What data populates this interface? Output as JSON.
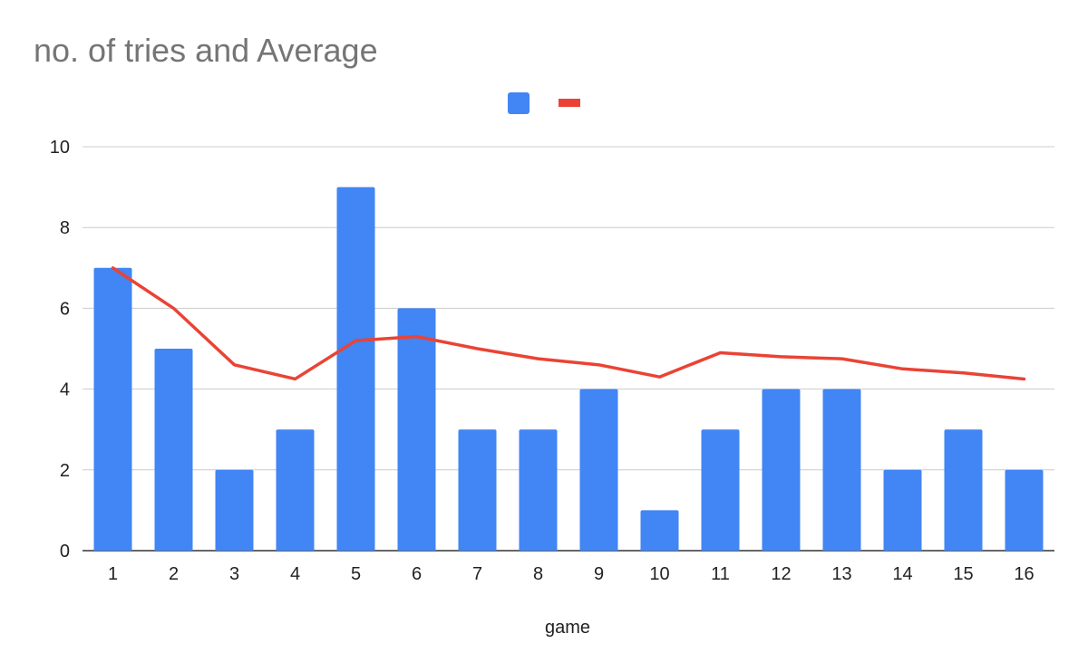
{
  "chart_data": {
    "type": "bar",
    "title": "no. of tries and Average",
    "xlabel": "game",
    "ylabel": "",
    "categories": [
      "1",
      "2",
      "3",
      "4",
      "5",
      "6",
      "7",
      "8",
      "9",
      "10",
      "11",
      "12",
      "13",
      "14",
      "15",
      "16"
    ],
    "ylim": [
      0,
      10
    ],
    "yticks": [
      "0",
      "2",
      "4",
      "6",
      "8",
      "10"
    ],
    "grid": true,
    "legend": "top-center",
    "series": [
      {
        "type": "bar",
        "color": "#4285f4",
        "values": [
          7,
          5,
          2,
          3,
          9,
          6,
          3,
          3,
          4,
          1,
          3,
          4,
          4,
          2,
          3,
          2
        ]
      },
      {
        "type": "line",
        "color": "#ea4335",
        "values": [
          7,
          6,
          4.6,
          4.25,
          5.2,
          5.3,
          5.0,
          4.75,
          4.6,
          4.3,
          4.9,
          4.8,
          4.75,
          4.5,
          4.4,
          4.25
        ]
      }
    ]
  }
}
